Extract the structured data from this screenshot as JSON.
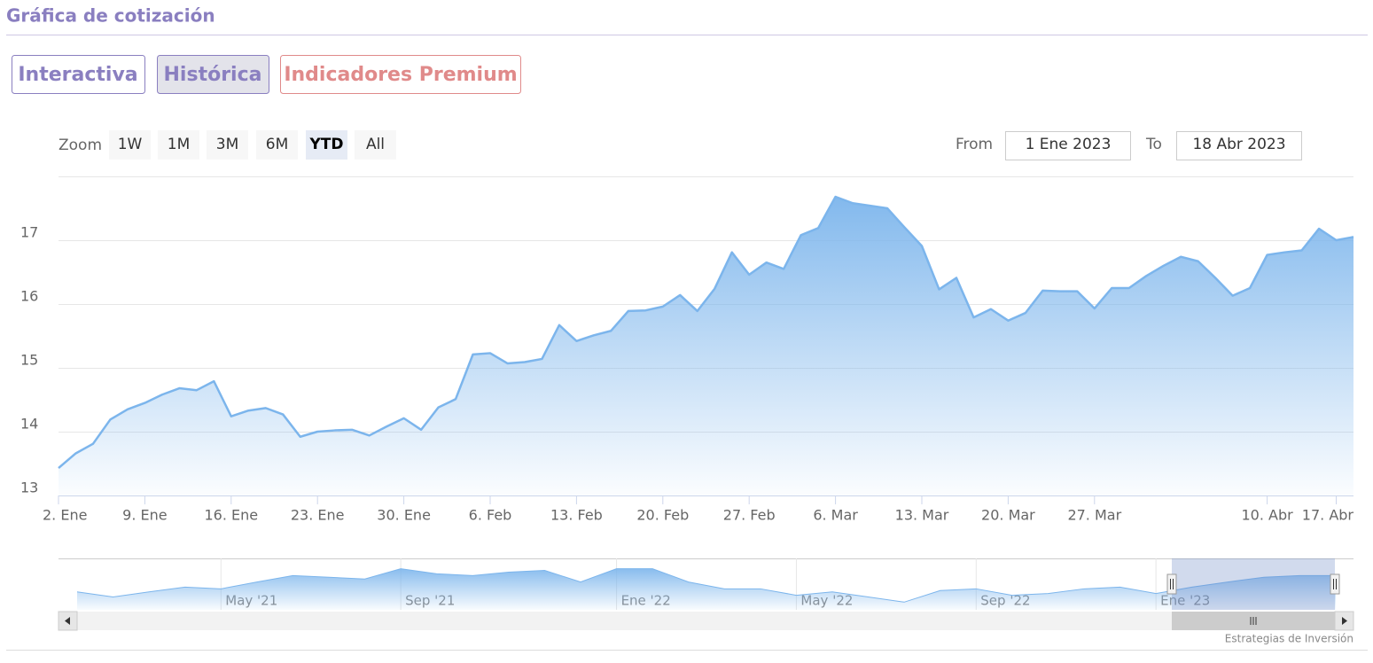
{
  "header": {
    "title": "Gráfica de cotización"
  },
  "tabs": [
    "Interactiva",
    "Histórica",
    "Indicadores Premium"
  ],
  "range_selector": {
    "label": "Zoom",
    "buttons": [
      "1W",
      "1M",
      "3M",
      "6M",
      "YTD",
      "All"
    ],
    "selected": "YTD",
    "from_label": "From",
    "from": "1 Ene 2023",
    "to_label": "To",
    "to": "18 Abr 2023"
  },
  "credits": "Estrategias de Inversión",
  "chart_data": {
    "type": "area",
    "color": "#7cb5ec",
    "grid": true,
    "categories": [
      "2. Ene",
      null,
      null,
      null,
      null,
      "9. Ene",
      null,
      null,
      null,
      null,
      "16. Ene",
      null,
      null,
      null,
      null,
      "23. Ene",
      null,
      null,
      null,
      null,
      "30. Ene",
      null,
      null,
      null,
      null,
      "6. Feb",
      null,
      null,
      null,
      null,
      "13. Feb",
      null,
      null,
      null,
      null,
      "20. Feb",
      null,
      null,
      null,
      null,
      "27. Feb",
      null,
      null,
      null,
      null,
      "6. Mar",
      null,
      null,
      null,
      null,
      "13. Mar",
      null,
      null,
      null,
      null,
      "20. Mar",
      null,
      null,
      null,
      null,
      "27. Mar",
      null,
      null,
      null,
      null,
      null,
      null,
      null,
      null,
      null,
      "10. Abr",
      null,
      null,
      null,
      "17. Abr",
      null
    ],
    "values": [
      13.43,
      13.66,
      13.81,
      14.19,
      14.35,
      14.45,
      14.58,
      14.68,
      14.65,
      14.79,
      14.24,
      14.33,
      14.37,
      14.27,
      13.92,
      14.0,
      14.02,
      14.03,
      13.94,
      14.08,
      14.21,
      14.03,
      14.38,
      14.51,
      15.21,
      15.23,
      15.07,
      15.09,
      15.14,
      15.67,
      15.42,
      15.51,
      15.58,
      15.89,
      15.9,
      15.96,
      16.14,
      15.89,
      16.24,
      16.81,
      16.46,
      16.65,
      16.55,
      17.08,
      17.19,
      17.68,
      17.58,
      17.54,
      17.5,
      17.2,
      16.91,
      16.23,
      16.41,
      15.79,
      15.92,
      15.74,
      15.86,
      16.21,
      16.2,
      16.2,
      15.93,
      16.25,
      16.25,
      16.44,
      16.6,
      16.74,
      16.67,
      16.41,
      16.13,
      16.25,
      16.77,
      16.81,
      16.84,
      17.18,
      17.0,
      17.05
    ],
    "ylim": [
      13,
      18
    ],
    "yticks": [
      13,
      14,
      15,
      16,
      17
    ],
    "navigator": {
      "ylim": [
        10,
        22
      ],
      "categories": [
        null,
        null,
        null,
        null,
        "May '21",
        null,
        null,
        null,
        null,
        "Sep '21",
        null,
        null,
        null,
        null,
        null,
        "Ene '22",
        null,
        null,
        null,
        null,
        "May '22",
        null,
        null,
        null,
        null,
        "Sep '22",
        null,
        null,
        null,
        null,
        "Ene '23",
        null,
        null,
        null,
        null,
        null
      ],
      "values": [
        14.2,
        13.0,
        14.2,
        15.3,
        14.9,
        16.5,
        18.0,
        17.6,
        17.2,
        19.6,
        18.4,
        18.0,
        18.8,
        19.2,
        16.5,
        19.6,
        19.6,
        16.5,
        14.9,
        14.9,
        13.4,
        14.2,
        13.0,
        11.8,
        14.5,
        14.9,
        13.4,
        13.8,
        14.9,
        15.3,
        13.8,
        15.3,
        16.5,
        17.6,
        18.0,
        18.0
      ]
    }
  }
}
